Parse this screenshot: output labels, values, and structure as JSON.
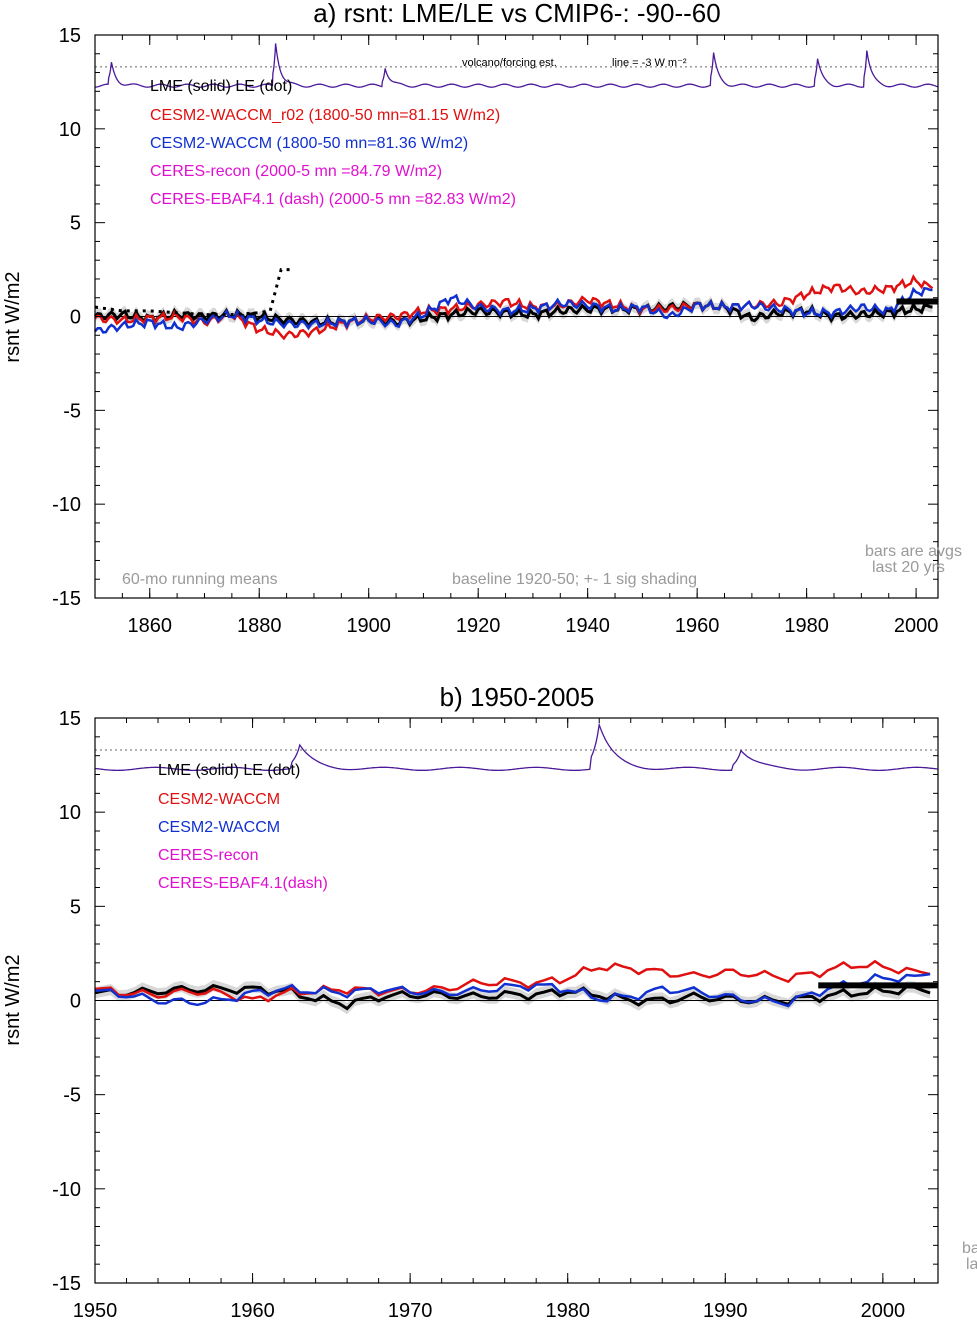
{
  "colors": {
    "lme": "#000000",
    "waccm_r02": "#e01010",
    "waccm": "#1030d0",
    "ceres": "#e010d0",
    "volcano": "#4b1a9a",
    "shade": "#d8d8d8",
    "note": "#9a9a9a"
  },
  "panel_a": {
    "title": "a) rsnt: LME/LE vs CMIP6-: -90--60",
    "ylabel": "rsnt W/m2",
    "xlim": [
      1850,
      2004
    ],
    "ylim": [
      -15,
      15
    ],
    "xticks": [
      "1860",
      "1880",
      "1900",
      "1920",
      "1940",
      "1960",
      "1980",
      "2000"
    ],
    "yticks": [
      "15",
      "10",
      "5",
      "0",
      "-5",
      "-10",
      "-15"
    ],
    "legend": [
      "LME (solid)   LE (dot)",
      "CESM2-WACCM_r02 (1800-50 mn=81.15 W/m2)",
      "CESM2-WACCM (1800-50 mn=81.36 W/m2)",
      "CERES-recon (2000-5 mn =84.79 W/m2)",
      "CERES-EBAF4.1 (dash) (2000-5 mn =82.83 W/m2)"
    ],
    "volcano_label": "volcano/forcing est.",
    "line_label": "line = -3 W m⁻²",
    "note_left": "60-mo running means",
    "note_mid": "baseline 1920-50; +- 1 sig shading",
    "note_right_1": "bars are avgs",
    "note_right_2": "last 20 yrs"
  },
  "panel_b": {
    "title": "b) 1950-2005",
    "ylabel": "rsnt W/m2",
    "xlim": [
      1950,
      2003.5
    ],
    "ylim": [
      -15,
      15
    ],
    "xticks": [
      "1950",
      "1960",
      "1970",
      "1980",
      "1990",
      "2000"
    ],
    "yticks": [
      "15",
      "10",
      "5",
      "0",
      "-5",
      "-10",
      "-15"
    ],
    "legend": [
      "LME (solid)      LE (dot)",
      "CESM2-WACCM",
      "CESM2-WACCM",
      "CERES-recon",
      "CERES-EBAF4.1(dash)"
    ],
    "note_right_1": "ba",
    "note_right_2": "la"
  },
  "chart_data": [
    {
      "type": "line",
      "title": "a) rsnt: LME/LE vs CMIP6-: -90--60",
      "ylabel": "rsnt W/m2",
      "xlim": [
        1850,
        2004
      ],
      "ylim": [
        -15,
        15
      ],
      "volcano_dotted_level": 13.3,
      "series": [
        {
          "name": "LME (solid)",
          "x": [
            1850,
            1855,
            1860,
            1865,
            1870,
            1875,
            1880,
            1885,
            1890,
            1895,
            1900,
            1905,
            1910,
            1915,
            1920,
            1925,
            1930,
            1935,
            1940,
            1945,
            1950,
            1955,
            1960,
            1965,
            1970,
            1975,
            1980,
            1985,
            1990,
            1995,
            2000,
            2003
          ],
          "y": [
            0.0,
            0.1,
            -0.1,
            0.1,
            0.0,
            0.1,
            0.0,
            -0.2,
            -0.3,
            -0.3,
            -0.2,
            -0.3,
            -0.1,
            0.1,
            0.3,
            0.2,
            0.1,
            0.3,
            0.4,
            0.4,
            0.4,
            0.5,
            0.6,
            0.5,
            -0.1,
            0.2,
            0.3,
            0.0,
            0.1,
            0.2,
            0.4,
            0.5
          ]
        },
        {
          "name": "CESM2-WACCM_r02",
          "x": [
            1850,
            1855,
            1860,
            1865,
            1870,
            1875,
            1880,
            1885,
            1890,
            1895,
            1900,
            1905,
            1910,
            1915,
            1920,
            1925,
            1930,
            1935,
            1940,
            1945,
            1950,
            1955,
            1960,
            1965,
            1970,
            1975,
            1980,
            1985,
            1990,
            1995,
            2000,
            2003
          ],
          "y": [
            -0.1,
            -0.2,
            -0.1,
            0.0,
            -0.3,
            0.1,
            -0.7,
            -1.0,
            -0.8,
            -0.4,
            -0.1,
            0.0,
            0.3,
            0.4,
            0.6,
            0.8,
            0.5,
            0.6,
            0.9,
            0.6,
            0.4,
            0.4,
            0.6,
            0.5,
            0.6,
            0.7,
            1.2,
            1.6,
            1.3,
            1.5,
            1.9,
            1.5
          ]
        },
        {
          "name": "CESM2-WACCM",
          "x": [
            1850,
            1855,
            1860,
            1865,
            1870,
            1875,
            1880,
            1885,
            1890,
            1895,
            1900,
            1905,
            1910,
            1915,
            1920,
            1925,
            1930,
            1935,
            1940,
            1945,
            1950,
            1955,
            1960,
            1965,
            1970,
            1975,
            1980,
            1985,
            1990,
            1995,
            2000,
            2003
          ],
          "y": [
            -0.8,
            -0.5,
            -0.3,
            -0.6,
            -0.2,
            0.1,
            -0.2,
            -0.4,
            -0.4,
            -0.3,
            -0.2,
            -0.4,
            0.1,
            1.0,
            0.5,
            0.3,
            0.4,
            0.7,
            0.6,
            0.4,
            0.5,
            0.0,
            0.6,
            0.5,
            0.6,
            0.4,
            0.2,
            0.2,
            0.5,
            0.3,
            1.3,
            1.4
          ]
        },
        {
          "name": "LE (dot)",
          "x": [
            1850,
            1855,
            1860,
            1865,
            1870,
            1875,
            1880,
            1882,
            1884,
            1886
          ],
          "y": [
            0.5,
            0.3,
            0.3,
            0.2,
            0.1,
            0.1,
            0.2,
            0.3,
            2.5,
            2.5
          ]
        }
      ],
      "bars_last_20_yrs": [
        0.8
      ],
      "volcano_peaks_years": [
        1853,
        1883,
        1903,
        1963,
        1982,
        1991
      ]
    },
    {
      "type": "line",
      "title": "b) 1950-2005",
      "ylabel": "rsnt W/m2",
      "xlim": [
        1950,
        2003.5
      ],
      "ylim": [
        -15,
        15
      ],
      "volcano_dotted_level": 13.3,
      "series": [
        {
          "name": "LME (solid)",
          "x": [
            1950,
            1952,
            1954,
            1956,
            1958,
            1960,
            1962,
            1964,
            1966,
            1968,
            1970,
            1972,
            1974,
            1976,
            1978,
            1980,
            1982,
            1984,
            1986,
            1988,
            1990,
            1992,
            1994,
            1996,
            1998,
            2000,
            2002,
            2003
          ],
          "y": [
            0.4,
            0.4,
            0.5,
            0.6,
            0.6,
            0.6,
            0.5,
            0.1,
            -0.2,
            0.2,
            0.3,
            0.3,
            0.2,
            0.3,
            0.3,
            0.5,
            0.3,
            0.0,
            0.0,
            0.2,
            0.1,
            0.0,
            0.0,
            0.2,
            0.4,
            0.5,
            0.6,
            0.4
          ]
        },
        {
          "name": "CESM2-WACCM",
          "x": [
            1950,
            1952,
            1954,
            1956,
            1958,
            1960,
            1962,
            1964,
            1966,
            1968,
            1970,
            1972,
            1974,
            1976,
            1978,
            1980,
            1982,
            1984,
            1986,
            1988,
            1990,
            1992,
            1994,
            1996,
            1998,
            2000,
            2002,
            2003
          ],
          "y": [
            0.6,
            0.4,
            0.3,
            0.5,
            0.4,
            0.0,
            0.4,
            0.5,
            0.6,
            0.5,
            0.5,
            0.6,
            0.9,
            1.0,
            0.9,
            1.2,
            1.8,
            1.7,
            1.5,
            1.3,
            1.5,
            1.4,
            1.2,
            1.5,
            1.9,
            1.8,
            1.5,
            1.4
          ]
        },
        {
          "name": "CESM2-WACCM",
          "x": [
            1950,
            1952,
            1954,
            1956,
            1958,
            1960,
            1962,
            1964,
            1966,
            1968,
            1970,
            1972,
            1974,
            1976,
            1978,
            1980,
            1982,
            1984,
            1986,
            1988,
            1990,
            1992,
            1994,
            1996,
            1998,
            2000,
            2002,
            2003
          ],
          "y": [
            0.5,
            0.3,
            0.0,
            -0.1,
            0.0,
            0.4,
            0.6,
            0.5,
            0.4,
            0.6,
            0.5,
            0.4,
            0.5,
            0.7,
            0.8,
            0.6,
            0.1,
            0.2,
            0.6,
            0.5,
            0.2,
            0.0,
            -0.1,
            0.5,
            0.9,
            1.2,
            1.2,
            1.4
          ]
        }
      ],
      "bars_last_20_yrs": [
        0.8
      ],
      "volcano_peaks_years": [
        1963,
        1982,
        1991
      ]
    }
  ]
}
